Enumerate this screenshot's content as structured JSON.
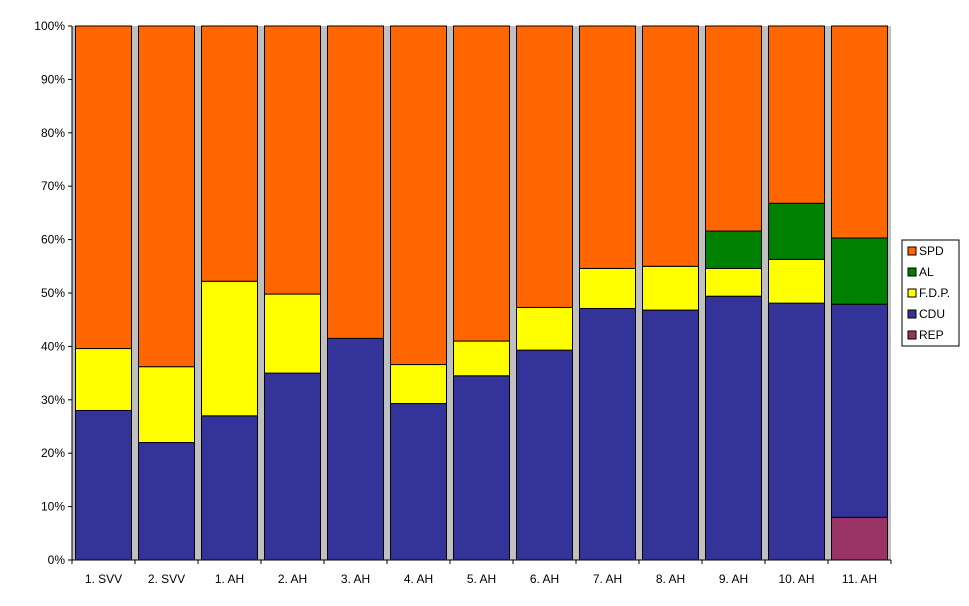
{
  "chart_data": {
    "type": "bar",
    "stacked": true,
    "normalized": true,
    "categories": [
      "1. SVV",
      "2. SVV",
      "1. AH",
      "2. AH",
      "3. AH",
      "4. AH",
      "5. AH",
      "6. AH",
      "7. AH",
      "8. AH",
      "9. AH",
      "10. AH",
      "11. AH"
    ],
    "series": [
      {
        "name": "REP",
        "color": "#993366",
        "values": [
          0,
          0,
          0,
          0,
          0,
          0,
          0,
          0,
          0,
          0,
          0,
          0,
          8.0
        ]
      },
      {
        "name": "CDU",
        "color": "#333399",
        "values": [
          28.0,
          22.0,
          27.0,
          35.0,
          41.5,
          29.3,
          34.5,
          39.3,
          47.1,
          46.8,
          49.4,
          48.1,
          39.9
        ]
      },
      {
        "name": "F.D.P.",
        "color": "#ffff00",
        "values": [
          11.6,
          14.2,
          25.2,
          14.8,
          0,
          7.3,
          6.5,
          8.0,
          7.5,
          8.2,
          5.2,
          8.2,
          0
        ]
      },
      {
        "name": "AL",
        "color": "#008000",
        "values": [
          0,
          0,
          0,
          0,
          0,
          0,
          0,
          0,
          0,
          0,
          7.0,
          10.5,
          12.4
        ]
      },
      {
        "name": "SPD",
        "color": "#ff6600",
        "values": [
          60.4,
          63.8,
          47.8,
          50.2,
          58.5,
          63.4,
          59.0,
          52.7,
          45.4,
          45.0,
          38.4,
          33.2,
          39.7
        ]
      }
    ],
    "yticks": [
      "0%",
      "10%",
      "20%",
      "30%",
      "40%",
      "50%",
      "60%",
      "70%",
      "80%",
      "90%",
      "100%"
    ],
    "ylim": [
      0,
      100
    ],
    "legend_order": [
      "SPD",
      "AL",
      "F.D.P.",
      "CDU",
      "REP"
    ],
    "legend_position": "right",
    "plot_background": "#c0c0c0",
    "grid": false
  }
}
